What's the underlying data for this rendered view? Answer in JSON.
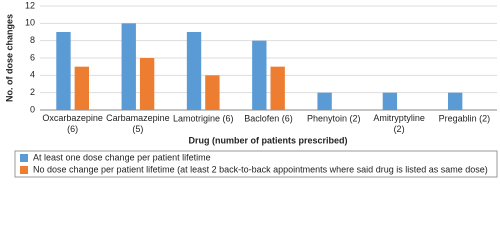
{
  "chart_data": {
    "type": "bar",
    "x_label": "Drug (number of patients prescribed)",
    "y_label": "No. of dose changes",
    "categories": [
      "Oxcarbazepine (6)",
      "Carbamazepine (5)",
      "Lamotrigine (6)",
      "Baclofen (6)",
      "Phenytoin (2)",
      "Amitryptyline (2)",
      "Pregablin (2)"
    ],
    "series": [
      {
        "name": "At least one dose change per patient lifetime",
        "color": "#5b9bd5",
        "values": [
          9,
          10,
          9,
          8,
          2,
          2,
          2
        ]
      },
      {
        "name": "No dose change per patient lifetime (at least 2 back-to-back appointments where said drug is listed as same dose)",
        "color": "#ed7d31",
        "values": [
          5,
          6,
          4,
          5,
          0,
          0,
          0
        ]
      }
    ],
    "ylim": [
      0,
      12
    ],
    "yticks": [
      0,
      2,
      4,
      6,
      8,
      10,
      12
    ],
    "grid": true
  }
}
